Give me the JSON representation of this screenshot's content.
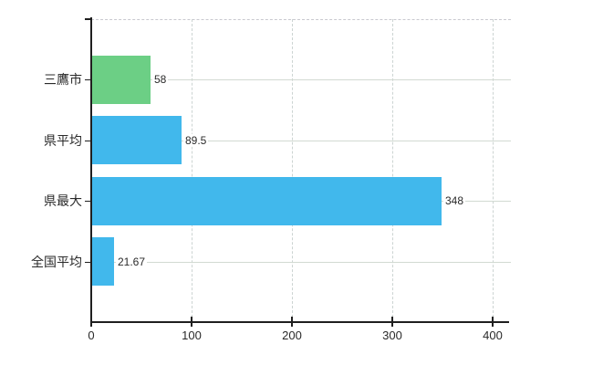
{
  "chart_data": {
    "type": "bar",
    "orientation": "horizontal",
    "title": "",
    "categories": [
      "三鷹市",
      "県平均",
      "県最大",
      "全国平均"
    ],
    "values": [
      58,
      89.5,
      348,
      21.67
    ],
    "value_labels": [
      "58",
      "89.5",
      "348",
      "21.67"
    ],
    "bar_colors": [
      "#6CCF85",
      "#41B8EC",
      "#41B8EC",
      "#41B8EC"
    ],
    "x_axis": {
      "min": 0,
      "max": 418,
      "ticks": [
        0,
        100,
        200,
        300,
        400
      ],
      "tick_labels": [
        "0",
        "100",
        "200",
        "300",
        "400"
      ]
    },
    "grid": true,
    "legend": false,
    "colors": {
      "bar_green": "#6CCF85",
      "bar_blue": "#41B8EC",
      "axis": "#1F1F1F",
      "grid_horizontal": "#D2DAD2",
      "grid_vertical": "#CCD4D2",
      "plot_top_border": "#C9C9CF",
      "text": "#2A2A2A",
      "background": "#FFFFFF"
    }
  }
}
